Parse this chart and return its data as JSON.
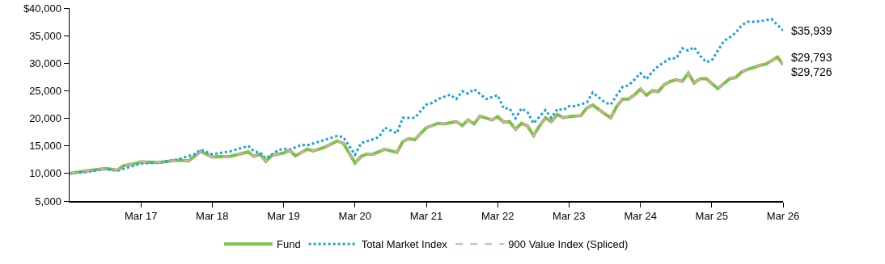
{
  "chart_data": {
    "type": "line",
    "xlim": [
      "2016-03",
      "2026-03"
    ],
    "xticks": [
      {
        "value": "2017-03",
        "label": "Mar 17"
      },
      {
        "value": "2018-03",
        "label": "Mar 18"
      },
      {
        "value": "2019-03",
        "label": "Mar 19"
      },
      {
        "value": "2020-03",
        "label": "Mar 20"
      },
      {
        "value": "2021-03",
        "label": "Mar 21"
      },
      {
        "value": "2022-03",
        "label": "Mar 22"
      },
      {
        "value": "2023-03",
        "label": "Mar 23"
      },
      {
        "value": "2024-03",
        "label": "Mar 24"
      },
      {
        "value": "2025-03",
        "label": "Mar 25"
      },
      {
        "value": "2026-03",
        "label": "Mar 26"
      }
    ],
    "ylim": [
      5000,
      40000
    ],
    "yticks": [
      {
        "value": 5000,
        "label": "5,000"
      },
      {
        "value": 10000,
        "label": "10,000"
      },
      {
        "value": 15000,
        "label": "15,000"
      },
      {
        "value": 20000,
        "label": "20,000"
      },
      {
        "value": 25000,
        "label": "25,000"
      },
      {
        "value": 30000,
        "label": "30,000"
      },
      {
        "value": 35000,
        "label": "35,000"
      },
      {
        "value": 40000,
        "label": "$40,000"
      }
    ],
    "grid": false,
    "legend": "bottom",
    "marker": "none",
    "series": [
      {
        "name": "Fund",
        "color": "#7dc242",
        "line_style": "solid",
        "x": [
          "2016-03",
          "2016-06",
          "2016-09",
          "2016-11",
          "2016-12",
          "2017-02",
          "2017-03",
          "2017-06",
          "2017-09",
          "2017-11",
          "2018-01",
          "2018-03",
          "2018-06",
          "2018-09",
          "2018-10",
          "2018-11",
          "2018-12",
          "2019-01",
          "2019-03",
          "2019-04",
          "2019-05",
          "2019-07",
          "2019-08",
          "2019-10",
          "2019-12",
          "2020-01",
          "2020-03",
          "2020-04",
          "2020-05",
          "2020-06",
          "2020-08",
          "2020-10",
          "2020-11",
          "2020-12",
          "2021-01",
          "2021-03",
          "2021-05",
          "2021-06",
          "2021-08",
          "2021-09",
          "2021-10",
          "2021-11",
          "2021-12",
          "2022-02",
          "2022-03",
          "2022-04",
          "2022-05",
          "2022-06",
          "2022-07",
          "2022-08",
          "2022-09",
          "2022-10",
          "2022-11",
          "2022-12",
          "2023-01",
          "2023-02",
          "2023-03",
          "2023-05",
          "2023-06",
          "2023-07",
          "2023-09",
          "2023-10",
          "2023-11",
          "2023-12",
          "2024-01",
          "2024-02",
          "2024-03",
          "2024-04",
          "2024-05",
          "2024-06",
          "2024-07",
          "2024-08",
          "2024-09",
          "2024-10",
          "2024-11",
          "2024-12",
          "2025-01",
          "2025-02",
          "2025-04",
          "2025-06",
          "2025-07",
          "2025-08",
          "2025-09",
          "2025-10",
          "2025-11",
          "2025-12",
          "2026-02",
          "2026-03"
        ],
        "values": [
          10000,
          10500,
          10900,
          10600,
          11400,
          11800,
          12100,
          12000,
          12400,
          12300,
          14000,
          13000,
          13100,
          13900,
          13100,
          13500,
          12200,
          13300,
          13700,
          14200,
          13200,
          14400,
          14100,
          14800,
          15900,
          15500,
          11900,
          13100,
          13500,
          13500,
          14400,
          13800,
          15800,
          16300,
          16100,
          18300,
          19100,
          19000,
          19400,
          18700,
          19700,
          19000,
          20400,
          19700,
          20300,
          19300,
          19400,
          18000,
          19100,
          18600,
          16900,
          18600,
          20100,
          19400,
          20700,
          20100,
          20300,
          20500,
          21900,
          22400,
          20800,
          20100,
          22200,
          23500,
          23500,
          24300,
          25300,
          24200,
          25000,
          24900,
          26100,
          26700,
          27000,
          26700,
          28200,
          26400,
          27200,
          27200,
          25400,
          27200,
          27400,
          28400,
          28900,
          29200,
          29600,
          29800,
          31100,
          29726
        ]
      },
      {
        "name": "Total Market Index",
        "color": "#1ba1dc",
        "line_style": "dotted",
        "x": [
          "2016-03",
          "2016-06",
          "2016-09",
          "2016-11",
          "2017-03",
          "2017-06",
          "2017-09",
          "2017-12",
          "2018-01",
          "2018-03",
          "2018-06",
          "2018-09",
          "2018-10",
          "2018-11",
          "2018-12",
          "2019-02",
          "2019-03",
          "2019-04",
          "2019-06",
          "2019-07",
          "2019-09",
          "2019-12",
          "2020-01",
          "2020-03",
          "2020-04",
          "2020-06",
          "2020-07",
          "2020-08",
          "2020-10",
          "2020-11",
          "2021-01",
          "2021-03",
          "2021-04",
          "2021-05",
          "2021-07",
          "2021-08",
          "2021-09",
          "2021-10",
          "2021-11",
          "2022-01",
          "2022-03",
          "2022-04",
          "2022-05",
          "2022-06",
          "2022-07",
          "2022-08",
          "2022-09",
          "2022-11",
          "2022-12",
          "2023-01",
          "2023-02",
          "2023-03",
          "2023-04",
          "2023-06",
          "2023-07",
          "2023-09",
          "2023-10",
          "2023-11",
          "2023-12",
          "2024-01",
          "2024-02",
          "2024-03",
          "2024-04",
          "2024-05",
          "2024-06",
          "2024-07",
          "2024-08",
          "2024-09",
          "2024-10",
          "2024-11",
          "2024-12",
          "2025-01",
          "2025-02",
          "2025-03",
          "2025-05",
          "2025-06",
          "2025-07",
          "2025-08",
          "2025-09",
          "2025-10",
          "2025-11",
          "2026-01",
          "2026-03"
        ],
        "values": [
          10000,
          10300,
          10800,
          10500,
          11800,
          12000,
          12500,
          13500,
          14300,
          13500,
          14000,
          15000,
          14000,
          13800,
          12700,
          14200,
          14500,
          14300,
          15200,
          15100,
          15800,
          16800,
          16600,
          13400,
          15500,
          16200,
          16600,
          18300,
          17300,
          20100,
          20100,
          22500,
          22800,
          23500,
          24300,
          23500,
          24900,
          24500,
          25300,
          23500,
          24200,
          21800,
          21800,
          20000,
          21800,
          21100,
          19100,
          21500,
          20100,
          21700,
          21500,
          22200,
          22200,
          22900,
          24700,
          22900,
          22500,
          24200,
          25700,
          26000,
          27100,
          28200,
          27100,
          28500,
          29500,
          30200,
          30900,
          30900,
          32700,
          32300,
          32900,
          31300,
          30200,
          30500,
          34000,
          34700,
          35500,
          36900,
          37500,
          37500,
          37600,
          38000,
          35939
        ]
      },
      {
        "name": "900 Value Index (Spliced)",
        "color": "#e8a0bf",
        "line_style": "dashed",
        "x": [
          "2016-03",
          "2016-06",
          "2016-09",
          "2016-11",
          "2016-12",
          "2017-02",
          "2017-03",
          "2017-06",
          "2017-09",
          "2017-11",
          "2018-01",
          "2018-03",
          "2018-06",
          "2018-09",
          "2018-10",
          "2018-11",
          "2018-12",
          "2019-01",
          "2019-03",
          "2019-04",
          "2019-05",
          "2019-07",
          "2019-08",
          "2019-10",
          "2019-12",
          "2020-01",
          "2020-03",
          "2020-04",
          "2020-05",
          "2020-06",
          "2020-08",
          "2020-10",
          "2020-11",
          "2020-12",
          "2021-01",
          "2021-03",
          "2021-05",
          "2021-06",
          "2021-08",
          "2021-09",
          "2021-10",
          "2021-11",
          "2021-12",
          "2022-02",
          "2022-03",
          "2022-04",
          "2022-05",
          "2022-06",
          "2022-07",
          "2022-08",
          "2022-09",
          "2022-10",
          "2022-11",
          "2022-12",
          "2023-01",
          "2023-02",
          "2023-03",
          "2023-05",
          "2023-06",
          "2023-07",
          "2023-09",
          "2023-10",
          "2023-11",
          "2023-12",
          "2024-01",
          "2024-02",
          "2024-03",
          "2024-04",
          "2024-05",
          "2024-06",
          "2024-07",
          "2024-08",
          "2024-09",
          "2024-10",
          "2024-11",
          "2024-12",
          "2025-01",
          "2025-02",
          "2025-04",
          "2025-06",
          "2025-07",
          "2025-08",
          "2025-09",
          "2025-10",
          "2025-11",
          "2025-12",
          "2026-02",
          "2026-03"
        ],
        "values": [
          10000,
          10500,
          10900,
          10600,
          11400,
          11800,
          12100,
          12000,
          12400,
          12300,
          14000,
          13000,
          13100,
          13900,
          13100,
          13500,
          12200,
          13300,
          13700,
          14200,
          13200,
          14400,
          14100,
          14800,
          15900,
          15500,
          11900,
          13100,
          13500,
          13500,
          14400,
          13800,
          15800,
          16300,
          16100,
          18300,
          19100,
          19000,
          19400,
          18700,
          19700,
          19000,
          20400,
          19700,
          20300,
          19300,
          19400,
          18000,
          19100,
          18600,
          16900,
          18600,
          20100,
          19400,
          20700,
          20100,
          20300,
          20500,
          21900,
          22400,
          20800,
          20100,
          22200,
          23500,
          23500,
          24300,
          25300,
          24200,
          25000,
          24900,
          26100,
          26700,
          27000,
          26700,
          28200,
          26400,
          27200,
          27200,
          25400,
          27200,
          27400,
          28400,
          28900,
          29200,
          29600,
          29800,
          31100,
          29793
        ]
      }
    ],
    "annotations": [
      {
        "text": "$35,939",
        "x": "2026-03",
        "y": 35939
      },
      {
        "text": "$29,793",
        "x": "2026-03",
        "y": 29793
      },
      {
        "text": "$29,726",
        "x": "2026-03",
        "y": 29726
      }
    ]
  }
}
